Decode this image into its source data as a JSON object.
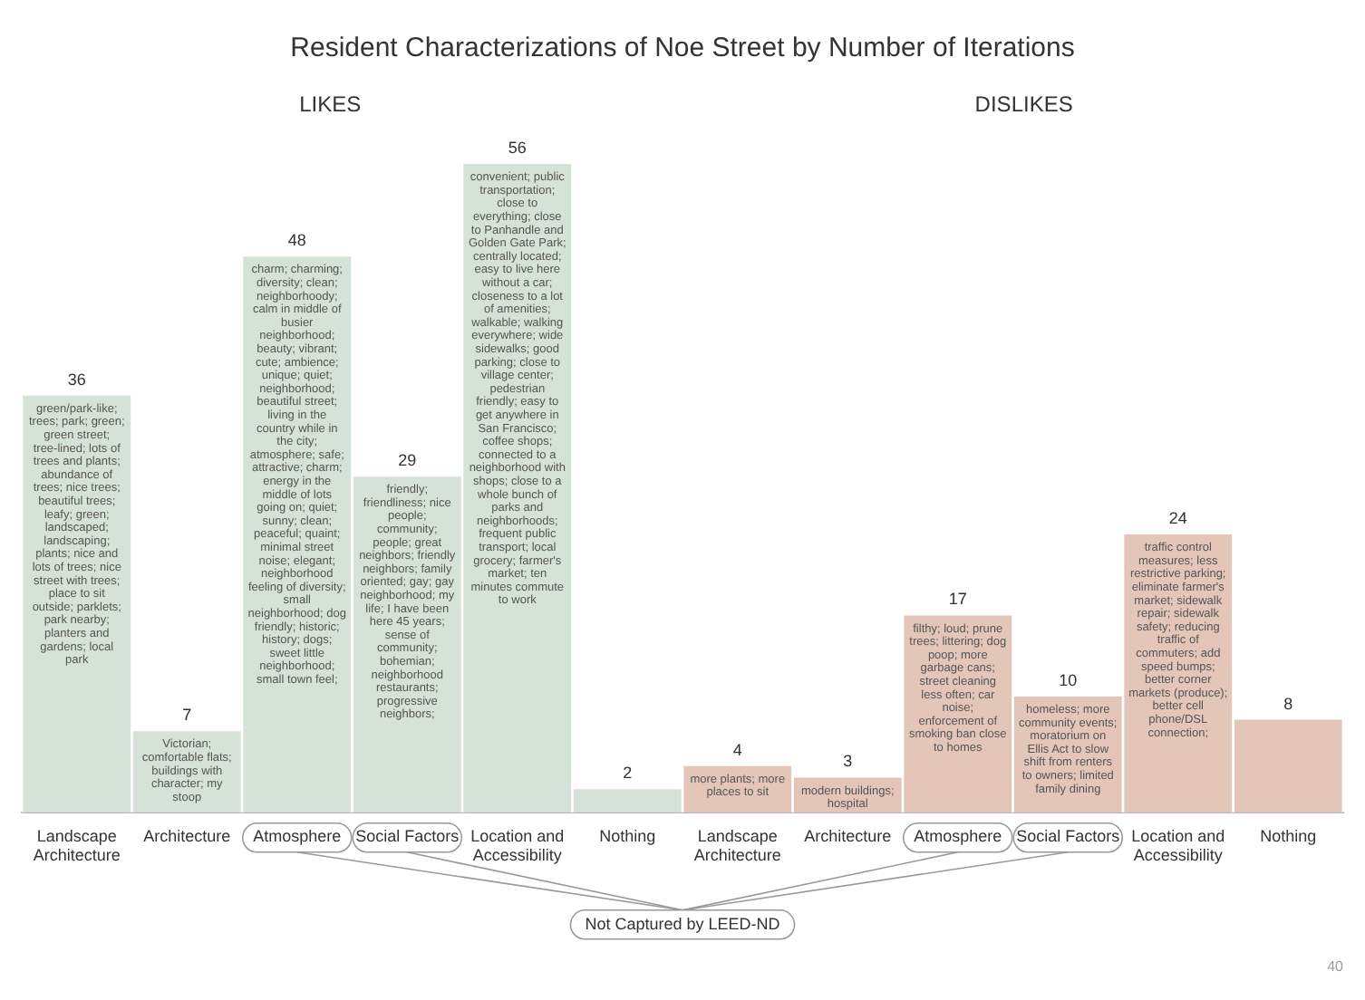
{
  "chart_data": {
    "type": "bar",
    "title": "Resident Characterizations of Noe Street by Number of Iterations",
    "categories": [
      "Landscape Architecture",
      "Architecture",
      "Atmosphere",
      "Social Factors",
      "Location and Accessibility",
      "Nothing",
      "Landscape Architecture",
      "Architecture",
      "Atmosphere",
      "Social Factors",
      "Location and Accessibility",
      "Nothing"
    ],
    "values": [
      36,
      7,
      48,
      29,
      56,
      2,
      4,
      3,
      17,
      10,
      24,
      8
    ],
    "colors": [
      "#d4e2d7",
      "#d4e2d7",
      "#d4e2d7",
      "#d4e2d7",
      "#d4e2d7",
      "#d4e2d7",
      "#e4c6b9",
      "#e4c6b9",
      "#e4c6b9",
      "#e4c6b9",
      "#e4c6b9",
      "#e4c6b9"
    ],
    "data_labels": true,
    "tick_labels": "x",
    "grid": false,
    "legend": false,
    "annotations": [
      "LIKES",
      "DISLIKES",
      "green/park-like; trees; park; green; green street; tree-lined; lots of trees and plants; abundance of trees; nice trees; beautiful trees; leafy; green; landscaped; landscaping; plants; nice and lots of trees; nice street with trees; place to sit outside; parklets; park nearby; planters and gardens; local park",
      "Victorian; comfortable flats; buildings with character; my stoop",
      "charm; charming; diversity; clean; neighborhoody; calm in middle of busier neighborhood; beauty; vibrant; cute; ambience; unique; quiet; neighborhood; beautiful street; living in the country while in the city; atmosphere; safe; attractive; charm; energy in the middle of lots going on; quiet; sunny; clean; peaceful; quaint; minimal street noise; elegant; neighborhood feeling of diversity; small neighborhood; dog friendly; historic; history; dogs; sweet little neighborhood; small town feel;",
      "friendly; friendliness; nice people; community; people; great neighbors; friendly neighbors; family oriented; gay; gay neighborhood; my life; I have been here 45 years; sense of community; bohemian; neighborhood restaurants; progressive neighbors;",
      "convenient; public transportation; close to everything; close to Panhandle and Golden Gate Park; centrally located; easy to live here without a car; closeness to a lot of amenities; walkable; walking everywhere; wide sidewalks; good parking; close to village center; pedestrian friendly; easy to get anywhere in San Francisco; coffee shops; connected to a neighborhood with shops; close to a whole bunch of parks and neighborhoods; frequent public transport; local grocery; farmer's market; ten minutes commute to work",
      "more plants; more places to sit",
      "modern buildings; hospital",
      "filthy; loud; prune trees; littering; dog poop; more garbage cans; street cleaning less often; car noise; enforcement of smoking ban close to homes",
      "homeless; more community events; moratorium on Ellis Act to slow shift from renters to owners; limited family dining",
      "traffic control measures; less restrictive parking; eliminate farmer's market; sidewalk repair; sidewalk safety; reducing traffic of commuters; add speed bumps; better corner markets (produce); better cell phone/DSL connection;",
      "Not Captured by LEED-ND",
      "40"
    ]
  }
}
